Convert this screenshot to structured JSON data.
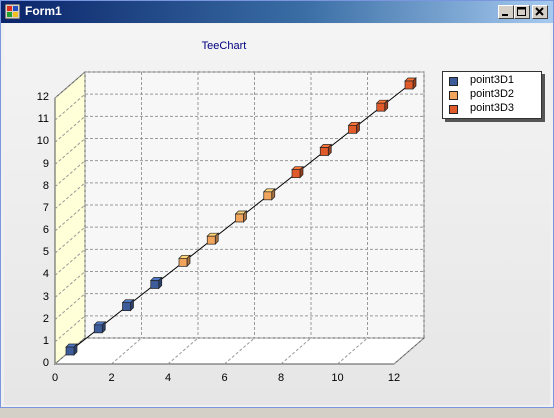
{
  "window": {
    "title": "Form1"
  },
  "titlebar_buttons": {
    "minimize": "minimize",
    "maximize": "maximize",
    "close": "close"
  },
  "chart_data": {
    "type": "line",
    "title": "TeeChart",
    "xlim": [
      0,
      12
    ],
    "ylim": [
      0,
      12
    ],
    "x_ticks": [
      "0",
      "2",
      "4",
      "6",
      "8",
      "10",
      "12"
    ],
    "y_ticks": [
      "0",
      "1",
      "2",
      "3",
      "4",
      "5",
      "6",
      "7",
      "8",
      "9",
      "10",
      "11",
      "12"
    ],
    "grid": true,
    "legend_position": "top-right",
    "series": [
      {
        "name": "point3D1",
        "color": "#3c5d9a",
        "points": [
          [
            0,
            0
          ],
          [
            1,
            1
          ],
          [
            2,
            2
          ],
          [
            3,
            3
          ]
        ]
      },
      {
        "name": "point3D2",
        "color": "#f0a45c",
        "points": [
          [
            4,
            4
          ],
          [
            5,
            5
          ],
          [
            6,
            6
          ],
          [
            7,
            7
          ]
        ]
      },
      {
        "name": "point3D3",
        "color": "#e05a2a",
        "points": [
          [
            8,
            8
          ],
          [
            9,
            9
          ],
          [
            10,
            10
          ],
          [
            11,
            11
          ],
          [
            12,
            12
          ]
        ]
      }
    ]
  }
}
